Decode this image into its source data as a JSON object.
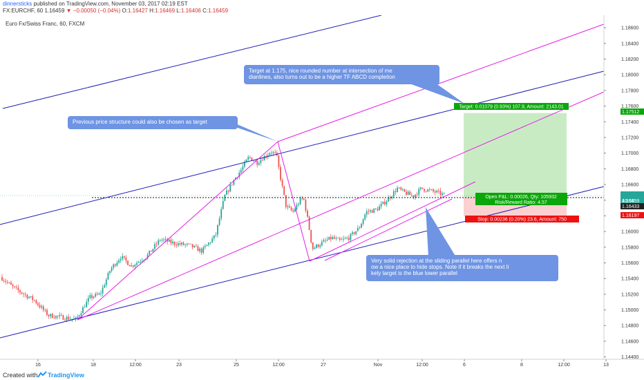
{
  "header": {
    "username": "dinnersticks",
    "published_text": "published on TradingView.com, November 03, 2017 02:19 EST",
    "ticker": "FX:EURCHF, 60",
    "last": "1.16459",
    "change": "▼ −0.00050 (−0.04%)",
    "o_label": "O:",
    "o": "1.16427",
    "h_label": "H:",
    "h": "1.16469",
    "l_label": "L:",
    "l": "1.16406",
    "c_label": "C:",
    "c": "1.16459"
  },
  "footer": {
    "created_with": "Created with",
    "brand": "TradingView"
  },
  "colors": {
    "up": "#26a69a",
    "down": "#ef5350",
    "blue_line": "#1c1cb8",
    "magenta_line": "#e61ee6",
    "target_zone": "#c9ebc4",
    "stop_zone": "#fbd0d0",
    "target_label": "#0aa60a",
    "stop_label": "#ee1111",
    "callout": "#6e94e3"
  },
  "chart_data": {
    "type": "candlestick",
    "symbol_title": "Euro Fx/Swiss Franc, 60, FXCM",
    "x_ticks": [
      "16",
      "18",
      "12:00",
      "23",
      "25",
      "12:00",
      "27",
      "Nov",
      "12:00",
      "6",
      "8",
      "12:00",
      "13"
    ],
    "y_ticks": [
      "1.18600",
      "1.18400",
      "1.18200",
      "1.18000",
      "1.17800",
      "1.17600",
      "1.17400",
      "1.17200",
      "1.17000",
      "1.16800",
      "1.16600",
      "1.16400",
      "1.16200",
      "1.16000",
      "1.15800",
      "1.15600",
      "1.15400",
      "1.15200",
      "1.15000",
      "1.14800",
      "1.14600",
      "1.14400"
    ],
    "ylim": [
      1.1437,
      1.1876
    ],
    "price_labels": {
      "target": "1.17512",
      "last": "1.16459",
      "countdown": "40:08",
      "entry": "1.16433",
      "stop": "1.16197"
    },
    "last_price": 1.16459,
    "entry_price": 1.16433,
    "target_price": 1.17512,
    "stop_price": 1.16197,
    "target_text": "Target: 0.01079 (0.93%) 107.9, Amount: 2143.01",
    "stop_text": "Stop: 0.00236 (0.20%) 23.6, Amount: 750",
    "pnl_text": "Open P&L: 0.00026, Qty: 105932",
    "rr_text": "Risk/Reward Ratio: 4.57",
    "annotations": [
      "Target at 1.175, nice rounded number at intersection of medianlines, also turns out to be a higher TF ABCD completion",
      "Previous price structure could also be chosen as target",
      "Very solid rejection at the sliding parallel here offers now a nice place to hide stops. Note if it breaks the next likely target is the blue lower parallel"
    ],
    "candle_anchors_xy": [
      [
        1,
        1.1542
      ],
      [
        20,
        1.1528
      ],
      [
        50,
        1.1512
      ],
      [
        70,
        1.1493
      ],
      [
        110,
        1.1488
      ],
      [
        130,
        1.1516
      ],
      [
        145,
        1.152
      ],
      [
        160,
        1.1552
      ],
      [
        175,
        1.1568
      ],
      [
        190,
        1.1556
      ],
      [
        212,
        1.1568
      ],
      [
        232,
        1.159
      ],
      [
        252,
        1.1585
      ],
      [
        275,
        1.1582
      ],
      [
        292,
        1.1575
      ],
      [
        312,
        1.1595
      ],
      [
        325,
        1.1645
      ],
      [
        338,
        1.1665
      ],
      [
        350,
        1.168
      ],
      [
        360,
        1.1695
      ],
      [
        372,
        1.1688
      ],
      [
        382,
        1.1695
      ],
      [
        392,
        1.1702
      ],
      [
        400,
        1.1698
      ],
      [
        406,
        1.1668
      ],
      [
        414,
        1.1632
      ],
      [
        424,
        1.1625
      ],
      [
        436,
        1.1642
      ],
      [
        440,
        1.164
      ],
      [
        446,
        1.1612
      ],
      [
        452,
        1.1578
      ],
      [
        465,
        1.1585
      ],
      [
        480,
        1.1592
      ],
      [
        492,
        1.1588
      ],
      [
        505,
        1.1592
      ],
      [
        520,
        1.1605
      ],
      [
        530,
        1.1625
      ],
      [
        545,
        1.1628
      ],
      [
        560,
        1.164
      ],
      [
        575,
        1.1655
      ],
      [
        585,
        1.165
      ],
      [
        598,
        1.1645
      ],
      [
        610,
        1.1655
      ],
      [
        622,
        1.1652
      ],
      [
        632,
        1.165
      ],
      [
        645,
        1.1646
      ]
    ]
  }
}
